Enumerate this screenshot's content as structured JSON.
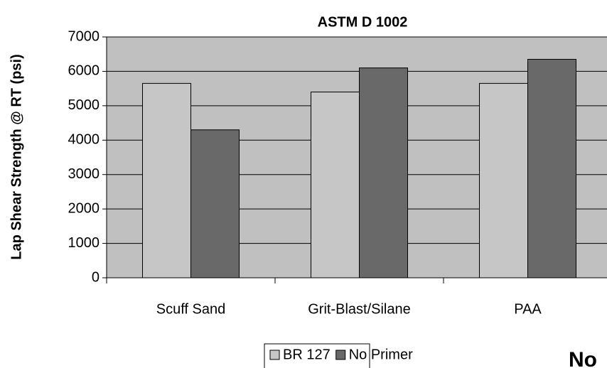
{
  "chart_data": {
    "type": "bar",
    "title": "ASTM D 1002",
    "y_label": "Lap Shear Strength @ RT (psi)",
    "categories": [
      "Scuff Sand",
      "Grit-Blast/Silane",
      "PAA"
    ],
    "series": [
      {
        "name": "BR 127",
        "color": "#c6c6c6",
        "values": [
          5650,
          5400,
          5650
        ]
      },
      {
        "name": "No Primer",
        "color": "#696969",
        "values": [
          4300,
          6100,
          6350
        ]
      }
    ],
    "ylim": [
      0,
      7000
    ],
    "yticks": [
      0,
      1000,
      2000,
      3000,
      4000,
      5000,
      6000,
      7000
    ],
    "grid": true,
    "plot_background": "#c0c0c0",
    "legend": "bottom",
    "annotation": "No"
  }
}
